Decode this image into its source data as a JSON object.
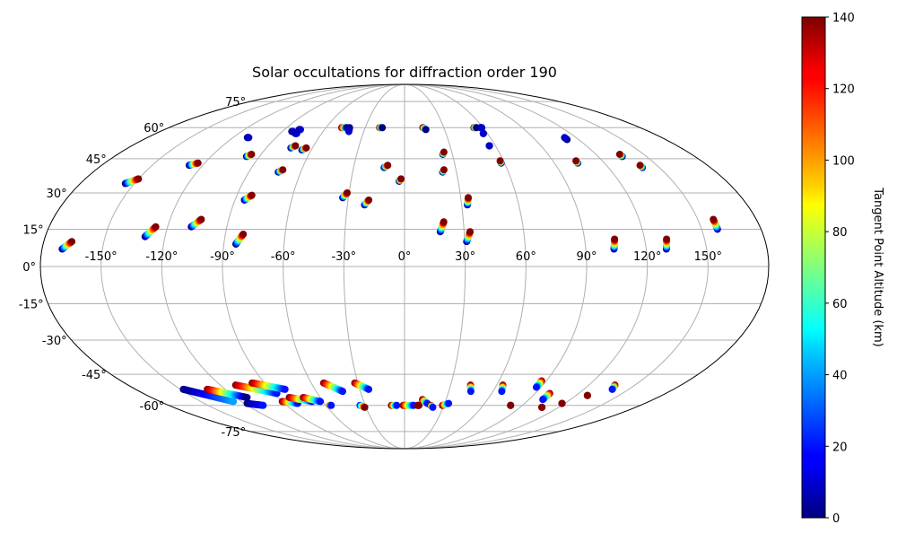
{
  "chart_data": {
    "type": "scatter",
    "projection": "mollweide",
    "title": "Solar occultations for diffraction order 190",
    "grid": true,
    "lon_ticks": [
      "-150°",
      "-120°",
      "-90°",
      "-60°",
      "-30°",
      "0°",
      "30°",
      "60°",
      "90°",
      "120°",
      "150°"
    ],
    "lon_tick_values": [
      -150,
      -120,
      -90,
      -60,
      -30,
      0,
      30,
      60,
      90,
      120,
      150
    ],
    "lat_ticks": [
      "75°",
      "60°",
      "45°",
      "30°",
      "15°",
      "0°",
      "-15°",
      "-30°",
      "-45°",
      "-60°",
      "-75°"
    ],
    "lat_tick_values": [
      75,
      60,
      45,
      30,
      15,
      0,
      -15,
      -30,
      -45,
      -60,
      -75
    ],
    "colorbar": {
      "label": "Tangent Point Altitude (km)",
      "colormap": "jet",
      "range": [
        0,
        140
      ],
      "ticks": [
        "0",
        "20",
        "40",
        "60",
        "80",
        "100",
        "120",
        "140"
      ],
      "tick_values": [
        0,
        20,
        40,
        60,
        80,
        100,
        120,
        140
      ]
    },
    "tracks": [
      {
        "lon_start": -170,
        "lat_start": 7,
        "lon_end": -166,
        "lat_end": 10,
        "alt_start": 0,
        "alt_end": 140
      },
      {
        "lon_start": -155,
        "lat_start": 34,
        "lon_end": -150,
        "lat_end": 36,
        "alt_start": 0,
        "alt_end": 140
      },
      {
        "lon_start": -130,
        "lat_start": 12,
        "lon_end": -126,
        "lat_end": 16,
        "alt_start": 0,
        "alt_end": 140
      },
      {
        "lon_start": -128,
        "lat_start": 42,
        "lon_end": -124,
        "lat_end": 43,
        "alt_start": 0,
        "alt_end": 140
      },
      {
        "lon_start": -110,
        "lat_start": 55,
        "lon_end": -109,
        "lat_end": 55,
        "alt_start": 0,
        "alt_end": 10
      },
      {
        "lon_start": -108,
        "lat_start": 16,
        "lon_end": -104,
        "lat_end": 19,
        "alt_start": 0,
        "alt_end": 140
      },
      {
        "lon_start": -98,
        "lat_start": 46,
        "lon_end": -96,
        "lat_end": 47,
        "alt_start": 0,
        "alt_end": 140
      },
      {
        "lon_start": -84,
        "lat_start": 9,
        "lon_end": -81,
        "lat_end": 13,
        "alt_start": 0,
        "alt_end": 140
      },
      {
        "lon_start": -85,
        "lat_start": 27,
        "lon_end": -82,
        "lat_end": 29,
        "alt_start": 0,
        "alt_end": 140
      },
      {
        "lon_start": -83,
        "lat_start": 58,
        "lon_end": -82,
        "lat_end": 58,
        "alt_start": 0,
        "alt_end": 10
      },
      {
        "lon_start": -79,
        "lat_start": 59,
        "lon_end": -78,
        "lat_end": 59,
        "alt_start": 0,
        "alt_end": 10
      },
      {
        "lon_start": -79,
        "lat_start": 57,
        "lon_end": -78,
        "lat_end": 57,
        "alt_start": 0,
        "alt_end": 10
      },
      {
        "lon_start": -74,
        "lat_start": 50,
        "lon_end": -72,
        "lat_end": 51,
        "alt_start": 0,
        "alt_end": 140
      },
      {
        "lon_start": -66,
        "lat_start": 49,
        "lon_end": -64,
        "lat_end": 50,
        "alt_start": 0,
        "alt_end": 140
      },
      {
        "lon_start": -73,
        "lat_start": 39,
        "lon_end": -71,
        "lat_end": 40,
        "alt_start": 0,
        "alt_end": 140
      },
      {
        "lon_start": -48,
        "lat_start": 60,
        "lon_end": -44,
        "lat_end": 60,
        "alt_start": 140,
        "alt_end": 0
      },
      {
        "lon_start": -42,
        "lat_start": 60,
        "lon_end": -41,
        "lat_end": 58,
        "alt_start": 0,
        "alt_end": 10
      },
      {
        "lon_start": -33,
        "lat_start": 28,
        "lon_end": -31,
        "lat_end": 30,
        "alt_start": 0,
        "alt_end": 140
      },
      {
        "lon_start": -21,
        "lat_start": 25,
        "lon_end": -19,
        "lat_end": 27,
        "alt_start": 0,
        "alt_end": 140
      },
      {
        "lon_start": -19,
        "lat_start": 60,
        "lon_end": -17,
        "lat_end": 60,
        "alt_start": 140,
        "alt_end": 0
      },
      {
        "lon_start": -12,
        "lat_start": 41,
        "lon_end": -10,
        "lat_end": 42,
        "alt_start": 0,
        "alt_end": 140
      },
      {
        "lon_start": -3,
        "lat_start": 35,
        "lon_end": -2,
        "lat_end": 36,
        "alt_start": 0,
        "alt_end": 140
      },
      {
        "lon_start": 14,
        "lat_start": 60,
        "lon_end": 16,
        "lat_end": 59,
        "alt_start": 140,
        "alt_end": 0
      },
      {
        "lon_start": 18,
        "lat_start": 14,
        "lon_end": 20,
        "lat_end": 18,
        "alt_start": 0,
        "alt_end": 140
      },
      {
        "lon_start": 22,
        "lat_start": 39,
        "lon_end": 23,
        "lat_end": 40,
        "alt_start": 0,
        "alt_end": 140
      },
      {
        "lon_start": 24,
        "lat_start": 47,
        "lon_end": 25,
        "lat_end": 48,
        "alt_start": 0,
        "alt_end": 140
      },
      {
        "lon_start": 33,
        "lat_start": 25,
        "lon_end": 34,
        "lat_end": 28,
        "alt_start": 0,
        "alt_end": 140
      },
      {
        "lon_start": 31,
        "lat_start": 10,
        "lon_end": 33,
        "lat_end": 14,
        "alt_start": 0,
        "alt_end": 140
      },
      {
        "lon_start": 53,
        "lat_start": 60,
        "lon_end": 55,
        "lat_end": 60,
        "alt_start": 140,
        "alt_end": 0
      },
      {
        "lon_start": 57,
        "lat_start": 57,
        "lon_end": 57,
        "lat_end": 57,
        "alt_start": 0,
        "alt_end": 10
      },
      {
        "lon_start": 58,
        "lat_start": 60,
        "lon_end": 59,
        "lat_end": 60,
        "alt_start": 0,
        "alt_end": 10
      },
      {
        "lon_start": 56,
        "lat_start": 51,
        "lon_end": 56,
        "lat_end": 51,
        "alt_start": 0,
        "alt_end": 10
      },
      {
        "lon_start": 58,
        "lat_start": 43,
        "lon_end": 58,
        "lat_end": 44,
        "alt_start": 0,
        "alt_end": 140
      },
      {
        "lon_start": 104,
        "lat_start": 7,
        "lon_end": 105,
        "lat_end": 11,
        "alt_start": 0,
        "alt_end": 140
      },
      {
        "lon_start": 104,
        "lat_start": 43,
        "lon_end": 104,
        "lat_end": 44,
        "alt_start": 0,
        "alt_end": 140
      },
      {
        "lon_start": 112,
        "lat_start": 54,
        "lon_end": 112,
        "lat_end": 55,
        "alt_start": 0,
        "alt_end": 10
      },
      {
        "lon_start": 130,
        "lat_start": 7,
        "lon_end": 131,
        "lat_end": 11,
        "alt_start": 0,
        "alt_end": 140
      },
      {
        "lon_start": 135,
        "lat_start": 46,
        "lon_end": 135,
        "lat_end": 47,
        "alt_start": 0,
        "alt_end": 140
      },
      {
        "lon_start": 140,
        "lat_start": 41,
        "lon_end": 140,
        "lat_end": 42,
        "alt_start": 0,
        "alt_end": 140
      },
      {
        "lon_start": 158,
        "lat_start": 15,
        "lon_end": 158,
        "lat_end": 19,
        "alt_start": 0,
        "alt_end": 140
      },
      {
        "lon_start": -148,
        "lat_start": -52,
        "lon_end": -126,
        "lat_end": -58,
        "alt_start": 0,
        "alt_end": 40
      },
      {
        "lon_start": -132,
        "lat_start": -52,
        "lon_end": -112,
        "lat_end": -56,
        "alt_start": 140,
        "alt_end": 0
      },
      {
        "lon_start": -118,
        "lat_start": -59,
        "lon_end": -108,
        "lat_end": -60,
        "alt_start": 0,
        "alt_end": 20
      },
      {
        "lon_start": -110,
        "lat_start": -50,
        "lon_end": -88,
        "lat_end": -54,
        "alt_start": 140,
        "alt_end": 20
      },
      {
        "lon_start": -98,
        "lat_start": -49,
        "lon_end": -80,
        "lat_end": -52,
        "alt_start": 140,
        "alt_end": 20
      },
      {
        "lon_start": -90,
        "lat_start": -58,
        "lon_end": -80,
        "lat_end": -59,
        "alt_start": 140,
        "alt_end": 20
      },
      {
        "lon_start": -82,
        "lat_start": -56,
        "lon_end": -68,
        "lat_end": -58,
        "alt_start": 140,
        "alt_end": 20
      },
      {
        "lon_start": -72,
        "lat_start": -56,
        "lon_end": -62,
        "lat_end": -58,
        "alt_start": 140,
        "alt_end": 20
      },
      {
        "lon_start": -57,
        "lat_start": -60,
        "lon_end": -56,
        "lat_end": -60,
        "alt_start": 140,
        "alt_end": 20
      },
      {
        "lon_start": -52,
        "lat_start": -49,
        "lon_end": -42,
        "lat_end": -53,
        "alt_start": 140,
        "alt_end": 20
      },
      {
        "lon_start": -32,
        "lat_start": -49,
        "lon_end": -24,
        "lat_end": -52,
        "alt_start": 140,
        "alt_end": 20
      },
      {
        "lon_start": -34,
        "lat_start": -60,
        "lon_end": -31,
        "lat_end": -61,
        "alt_start": 20,
        "alt_end": 140
      },
      {
        "lon_start": -10,
        "lat_start": -60,
        "lon_end": -6,
        "lat_end": -60,
        "alt_start": 140,
        "alt_end": 20
      },
      {
        "lon_start": -1,
        "lat_start": -60,
        "lon_end": 7,
        "lat_end": -60,
        "alt_start": 140,
        "alt_end": 20
      },
      {
        "lon_start": 10,
        "lat_start": -60,
        "lon_end": 11,
        "lat_end": -60,
        "alt_start": 140,
        "alt_end": 140
      },
      {
        "lon_start": 13,
        "lat_start": -57,
        "lon_end": 17,
        "lat_end": -59,
        "alt_start": 140,
        "alt_end": 20
      },
      {
        "lon_start": 20,
        "lat_start": -60,
        "lon_end": 22,
        "lat_end": -61,
        "alt_start": 140,
        "alt_end": 20
      },
      {
        "lon_start": 29,
        "lat_start": -60,
        "lon_end": 33,
        "lat_end": -59,
        "alt_start": 140,
        "alt_end": 20
      },
      {
        "lon_start": 43,
        "lat_start": -50,
        "lon_end": 45,
        "lat_end": -53,
        "alt_start": 140,
        "alt_end": 20
      },
      {
        "lon_start": 64,
        "lat_start": -50,
        "lon_end": 66,
        "lat_end": -53,
        "alt_start": 140,
        "alt_end": 20
      },
      {
        "lon_start": 81,
        "lat_start": -60,
        "lon_end": 81,
        "lat_end": -60,
        "alt_start": 140,
        "alt_end": 140
      },
      {
        "lon_start": 87,
        "lat_start": -48,
        "lon_end": 87,
        "lat_end": -51,
        "alt_start": 140,
        "alt_end": 20
      },
      {
        "lon_start": 100,
        "lat_start": -54,
        "lon_end": 100,
        "lat_end": -57,
        "alt_start": 140,
        "alt_end": 20
      },
      {
        "lon_start": 107,
        "lat_start": -61,
        "lon_end": 107,
        "lat_end": -61,
        "alt_start": 140,
        "alt_end": 140
      },
      {
        "lon_start": 118,
        "lat_start": -59,
        "lon_end": 118,
        "lat_end": -59,
        "alt_start": 140,
        "alt_end": 140
      },
      {
        "lon_start": 128,
        "lat_start": -55,
        "lon_end": 128,
        "lat_end": -55,
        "alt_start": 140,
        "alt_end": 140
      },
      {
        "lon_start": 137,
        "lat_start": -50,
        "lon_end": 139,
        "lat_end": -52,
        "alt_start": 140,
        "alt_end": 20
      }
    ]
  }
}
